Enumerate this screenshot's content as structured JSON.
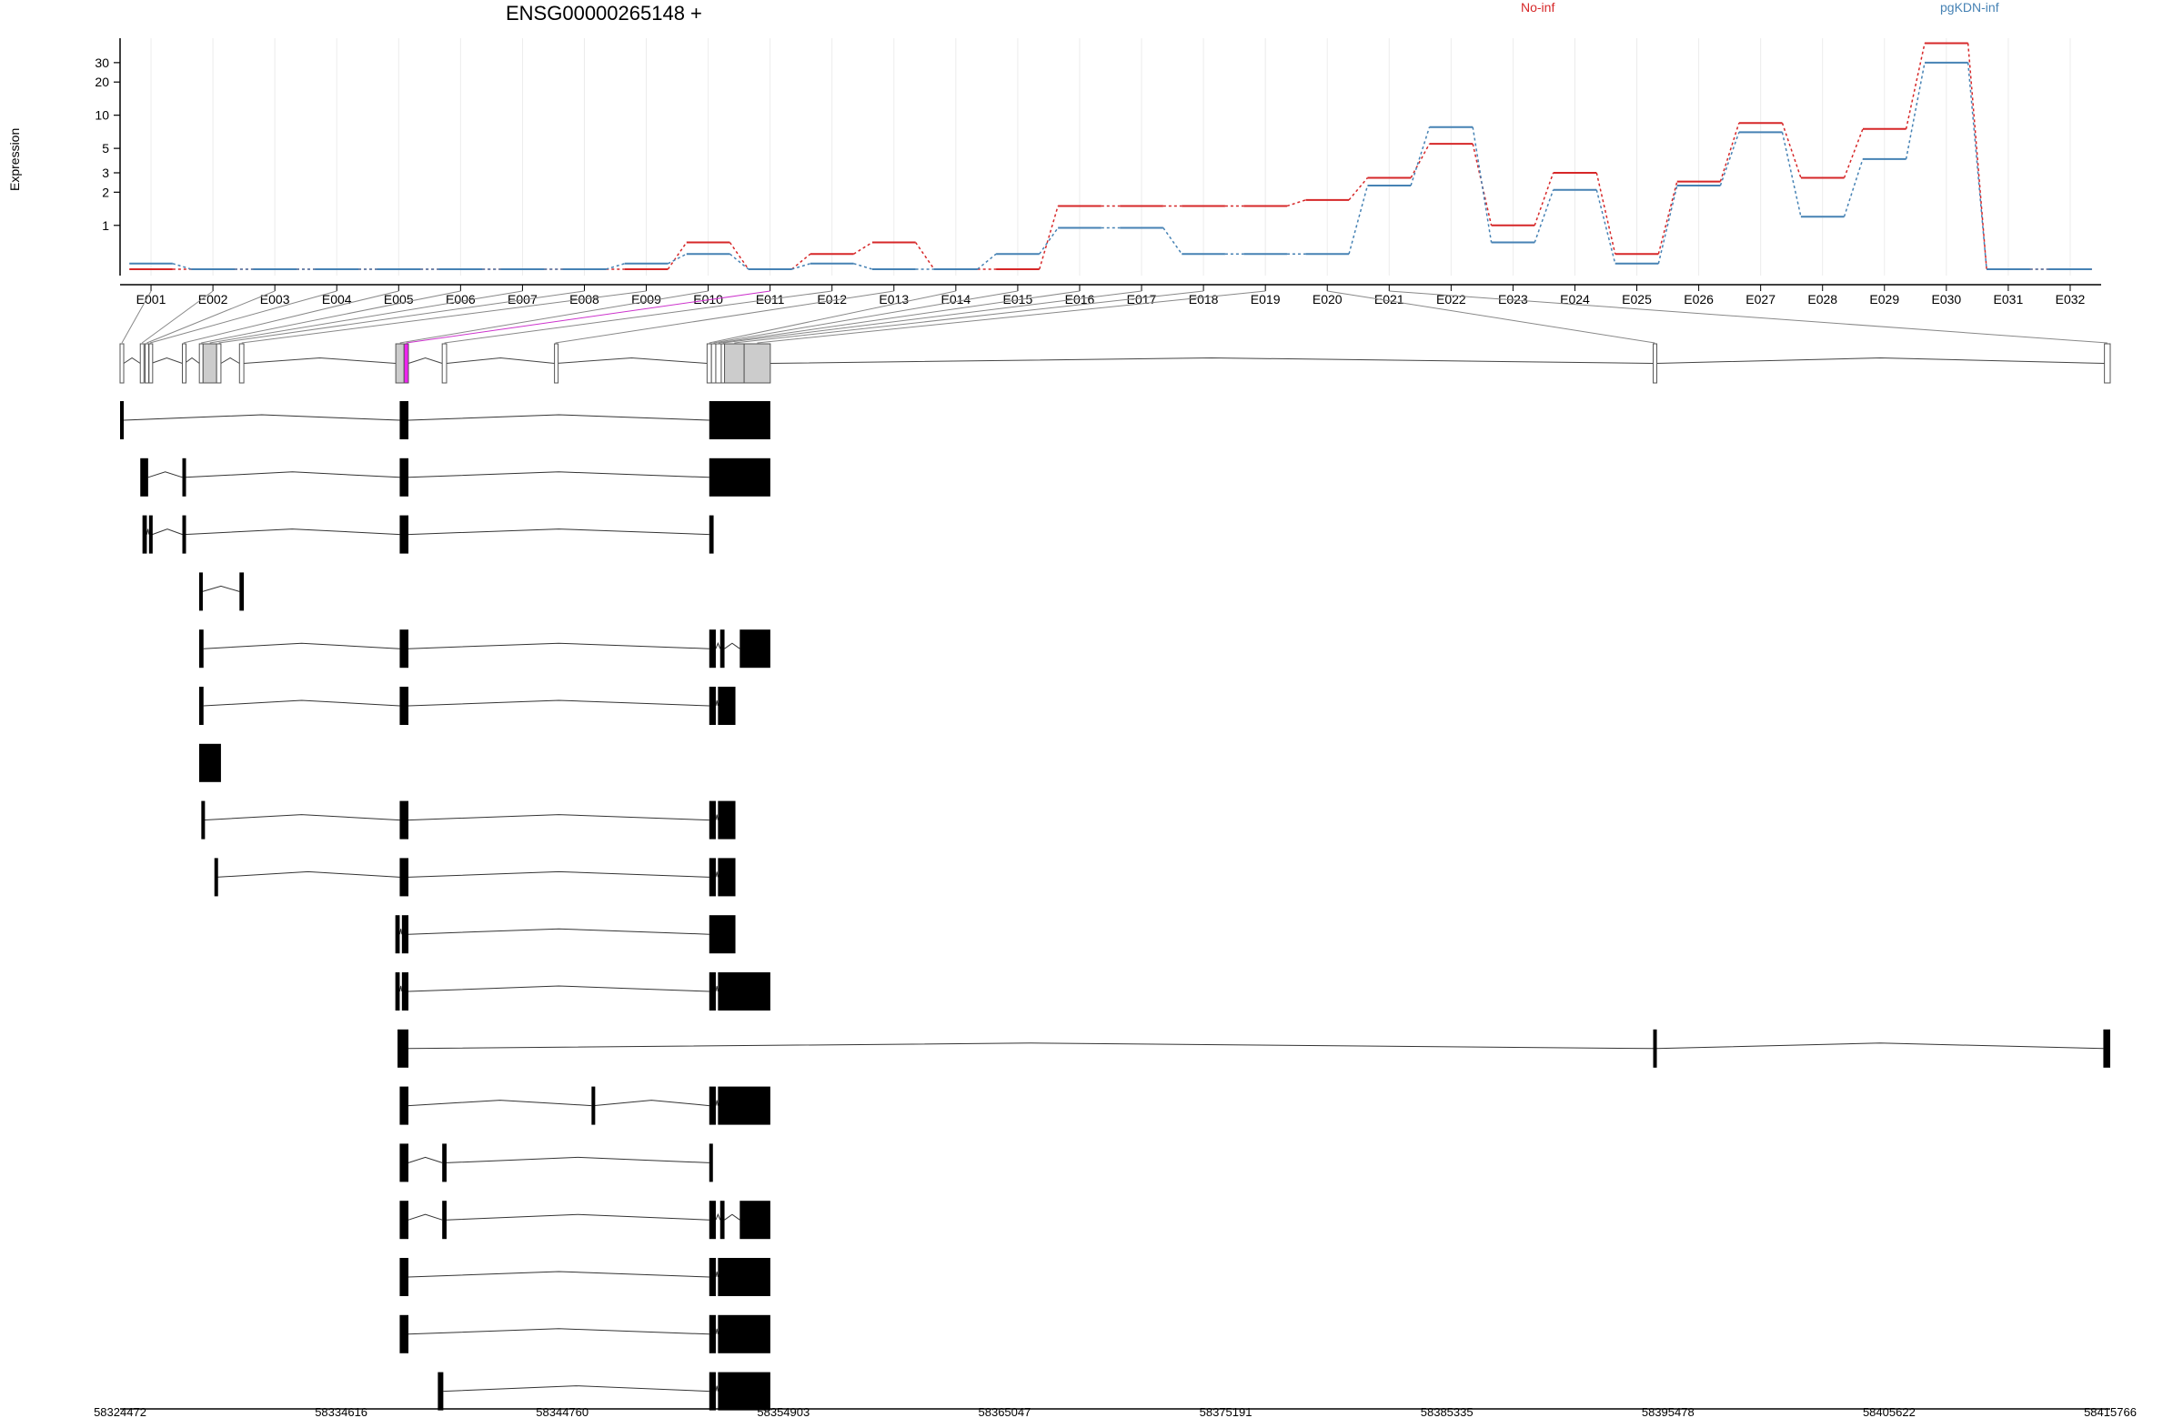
{
  "chart_data": {
    "type": "line",
    "title": "ENSG00000265148 +",
    "ylabel": "Expression",
    "yscale": "log",
    "ylim": [
      0.35,
      50
    ],
    "yticks": [
      1,
      2,
      3,
      5,
      10,
      20,
      30
    ],
    "categories": [
      "E001",
      "E002",
      "E003",
      "E004",
      "E005",
      "E006",
      "E007",
      "E008",
      "E009",
      "E010",
      "E011",
      "E012",
      "E013",
      "E014",
      "E015",
      "E016",
      "E017",
      "E018",
      "E019",
      "E020",
      "E021",
      "E022",
      "E023",
      "E024",
      "E025",
      "E026",
      "E027",
      "E028",
      "E029",
      "E030",
      "E031",
      "E032"
    ],
    "series": [
      {
        "name": "No-inf",
        "color": "#d62728",
        "values": [
          0.4,
          0.4,
          0.4,
          0.4,
          0.4,
          0.4,
          0.4,
          0.4,
          0.4,
          0.7,
          0.4,
          0.55,
          0.7,
          0.4,
          0.4,
          1.5,
          1.5,
          1.5,
          1.5,
          1.7,
          2.7,
          5.5,
          1.0,
          3.0,
          0.55,
          2.5,
          8.5,
          2.7,
          7.5,
          45,
          0.4,
          0.4
        ]
      },
      {
        "name": "pgKDN-inf",
        "color": "#4682b4",
        "values": [
          0.45,
          0.4,
          0.4,
          0.4,
          0.4,
          0.4,
          0.4,
          0.4,
          0.45,
          0.55,
          0.4,
          0.45,
          0.4,
          0.4,
          0.55,
          0.95,
          0.95,
          0.55,
          0.55,
          0.55,
          2.3,
          7.8,
          0.7,
          2.1,
          0.45,
          2.3,
          7.0,
          1.2,
          4.0,
          30,
          0.4,
          0.4
        ]
      }
    ],
    "legend": "top",
    "grid": true,
    "gene_model": {
      "xaxis_ticks": [
        "58324472",
        "58334616",
        "58344760",
        "58354903",
        "58365047",
        "58375191",
        "58385335",
        "58395478",
        "58405622",
        "58415766"
      ],
      "xrange": [
        58324472,
        58415766
      ],
      "exons": [
        [
          58324472,
          58324640
        ],
        [
          58325400,
          58325560
        ],
        [
          58325620,
          58325780
        ],
        [
          58325800,
          58325900
        ],
        [
          58327330,
          58327430
        ],
        [
          58328110,
          58328280
        ],
        [
          58328280,
          58328900
        ],
        [
          58328900,
          58329100
        ],
        [
          58329950,
          58330150
        ],
        [
          58337120,
          58337500
        ],
        [
          58337500,
          58337700
        ],
        [
          58339250,
          58339450
        ],
        [
          58344400,
          58344480
        ],
        [
          58351400,
          58351600
        ],
        [
          58351600,
          58351800
        ],
        [
          58351800,
          58352050
        ],
        [
          58352050,
          58352200
        ],
        [
          58352200,
          58353100
        ],
        [
          58353100,
          58354300
        ],
        [
          58394800,
          58394950
        ],
        [
          58415500,
          58415766
        ]
      ],
      "highlight_exon": 10,
      "transcripts": [
        [
          [
            58324472,
            58324640
          ],
          [
            58337300,
            58337700
          ],
          [
            58351500,
            58354300
          ]
        ],
        [
          [
            58325400,
            58325760
          ],
          [
            58327330,
            58327460
          ],
          [
            58337300,
            58337700
          ],
          [
            58351500,
            58354300
          ]
        ],
        [
          [
            58325500,
            58325700
          ],
          [
            58325800,
            58325950
          ],
          [
            58327330,
            58327430
          ],
          [
            58337300,
            58337700
          ],
          [
            58351500,
            58351700
          ]
        ],
        [
          [
            58328100,
            58328250
          ],
          [
            58329950,
            58330150
          ]
        ],
        [
          [
            58328100,
            58328300
          ],
          [
            58337300,
            58337700
          ],
          [
            58351500,
            58351800
          ],
          [
            58352000,
            58352200
          ],
          [
            58352900,
            58354300
          ]
        ],
        [
          [
            58328100,
            58328300
          ],
          [
            58337300,
            58337700
          ],
          [
            58351500,
            58351800
          ],
          [
            58351900,
            58352700
          ]
        ],
        [
          [
            58328100,
            58329100
          ]
        ],
        [
          [
            58328200,
            58328300
          ],
          [
            58337300,
            58337700
          ],
          [
            58351500,
            58351800
          ],
          [
            58351900,
            58352700
          ]
        ],
        [
          [
            58328800,
            58328900
          ],
          [
            58337300,
            58337700
          ],
          [
            58351500,
            58351800
          ],
          [
            58351900,
            58352700
          ]
        ],
        [
          [
            58337100,
            58337300
          ],
          [
            58337400,
            58337700
          ],
          [
            58351500,
            58352700
          ]
        ],
        [
          [
            58337100,
            58337300
          ],
          [
            58337400,
            58337700
          ],
          [
            58351500,
            58351800
          ],
          [
            58351900,
            58354300
          ]
        ],
        [
          [
            58337200,
            58337700
          ],
          [
            58394800,
            58394950
          ],
          [
            58415450,
            58415766
          ]
        ],
        [
          [
            58337300,
            58337700
          ],
          [
            58346100,
            58346200
          ],
          [
            58351500,
            58351800
          ],
          [
            58351900,
            58354300
          ]
        ],
        [
          [
            58337300,
            58337700
          ],
          [
            58339250,
            58339450
          ],
          [
            58351500,
            58351560
          ]
        ],
        [
          [
            58337300,
            58337700
          ],
          [
            58339250,
            58339450
          ],
          [
            58351500,
            58351800
          ],
          [
            58352000,
            58352200
          ],
          [
            58352900,
            58354300
          ]
        ],
        [
          [
            58337300,
            58337700
          ],
          [
            58351500,
            58351800
          ],
          [
            58351900,
            58354300
          ]
        ],
        [
          [
            58337300,
            58337700
          ],
          [
            58351500,
            58351800
          ],
          [
            58351900,
            58354300
          ]
        ],
        [
          [
            58339050,
            58339300
          ],
          [
            58351500,
            58351800
          ],
          [
            58351900,
            58354300
          ]
        ]
      ]
    }
  }
}
